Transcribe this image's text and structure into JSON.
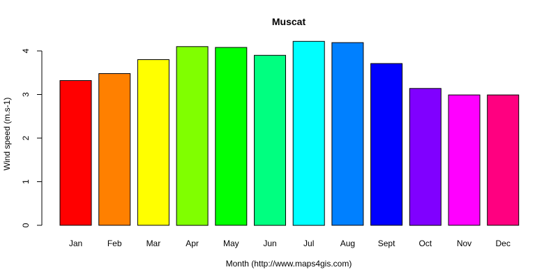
{
  "chart_data": {
    "type": "bar",
    "title": "Muscat",
    "xlabel": "Month (http://www.maps4gis.com)",
    "ylabel": "Wind speed (m.s-1)",
    "categories": [
      "Jan",
      "Feb",
      "Mar",
      "Apr",
      "May",
      "Jun",
      "Jul",
      "Aug",
      "Sept",
      "Oct",
      "Nov",
      "Dec"
    ],
    "values": [
      3.32,
      3.48,
      3.8,
      4.1,
      4.08,
      3.9,
      4.22,
      4.19,
      3.71,
      3.14,
      2.99,
      2.99
    ],
    "colors": [
      "#FF0000",
      "#FF8000",
      "#FFFF00",
      "#80FF00",
      "#00FF00",
      "#00FF80",
      "#00FFFF",
      "#0080FF",
      "#0000FF",
      "#8000FF",
      "#FF00FF",
      "#FF0080"
    ],
    "yticks": [
      0,
      1,
      2,
      3,
      4
    ],
    "ylim": [
      0,
      4.22
    ],
    "grid": false,
    "legend": "none"
  }
}
